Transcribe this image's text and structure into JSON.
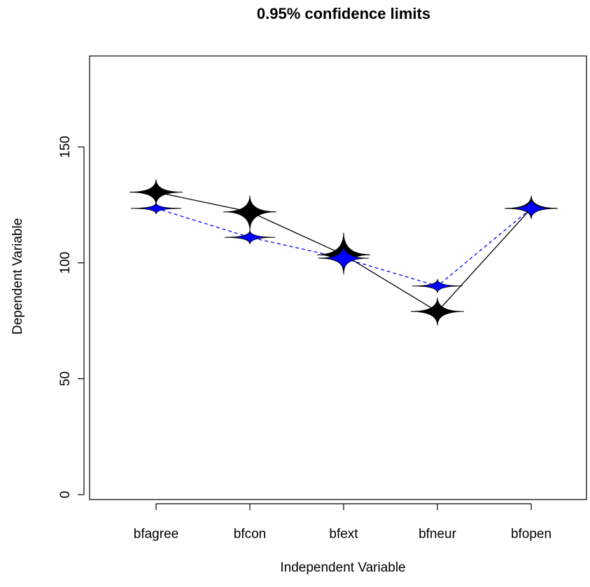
{
  "chart_data": {
    "type": "line",
    "title": "0.95% confidence limits",
    "xlabel": "Independent Variable",
    "ylabel": "Dependent Variable",
    "categories": [
      "bfagree",
      "bfcon",
      "bfext",
      "bfneur",
      "bfopen"
    ],
    "ylim": [
      0,
      185
    ],
    "yticks": [
      0,
      50,
      100,
      150
    ],
    "series": [
      {
        "color": "#000000",
        "line_style": "solid",
        "values": [
          130.5,
          122,
          103.5,
          79,
          123.5
        ],
        "lower": [
          125,
          114,
          95,
          73,
          119
        ],
        "upper": [
          136,
          129,
          113,
          85,
          129
        ]
      },
      {
        "color": "#0000ff",
        "line_style": "dashed",
        "values": [
          123.5,
          111,
          102,
          90,
          123.5
        ],
        "lower": [
          121,
          108,
          96,
          87,
          119
        ],
        "upper": [
          126,
          114,
          108,
          93,
          128
        ]
      }
    ],
    "grid": false,
    "legend": "none"
  }
}
